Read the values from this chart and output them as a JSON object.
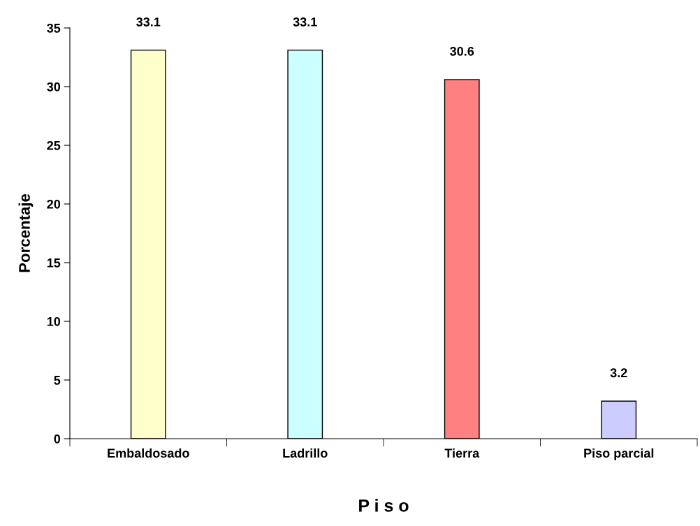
{
  "chart_data": {
    "type": "bar",
    "xlabel": "P i s o",
    "ylabel": "Porcentaje",
    "categories": [
      "Embaldosado",
      "Ladrillo",
      "Tierra",
      "Piso parcial"
    ],
    "values": [
      33.1,
      33.1,
      30.6,
      3.2
    ],
    "colors": [
      "#ffffcc",
      "#ccffff",
      "#ff8080",
      "#ccccff"
    ],
    "ylim": [
      0,
      35
    ],
    "yticks": [
      0,
      5,
      10,
      15,
      20,
      25,
      30,
      35
    ],
    "data_labels": true
  }
}
